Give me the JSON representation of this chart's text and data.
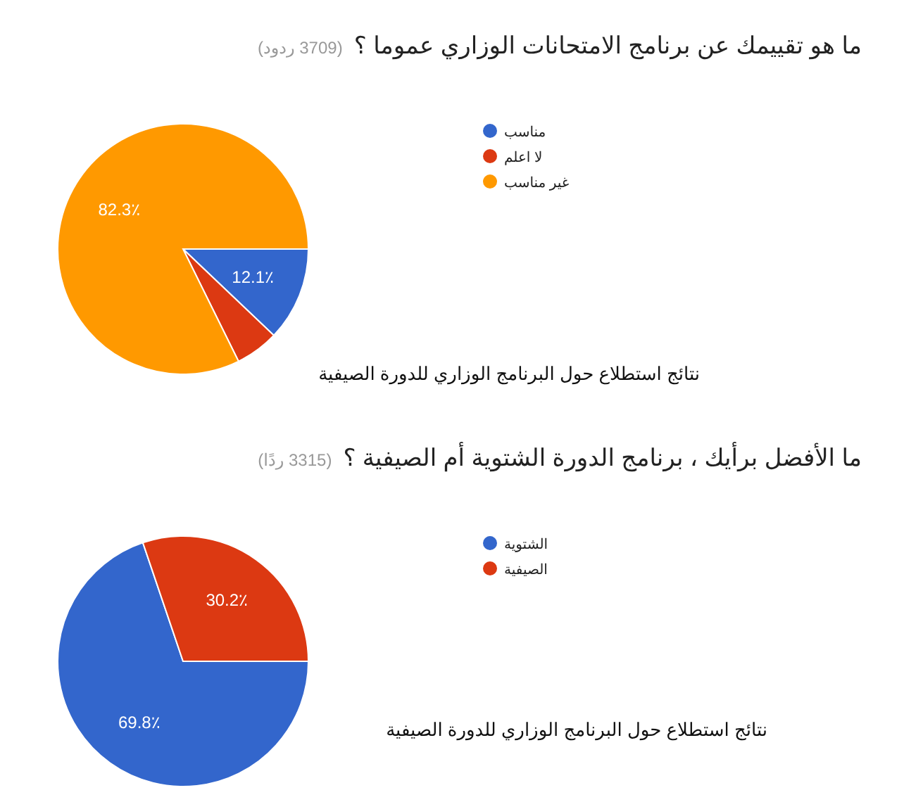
{
  "chart_data": [
    {
      "type": "pie",
      "title": "ما هو تقييمك عن برنامج الامتحانات الوزاري عموما ؟",
      "subtitle": "(3709 ردود)",
      "categories": [
        "مناسب",
        "لا اعلم",
        "غير مناسب"
      ],
      "values": [
        12.1,
        5.6,
        82.3
      ],
      "colors": [
        "#3366cc",
        "#dc3912",
        "#ff9900"
      ],
      "value_labels": [
        "12.1٪",
        null,
        "82.3٪"
      ],
      "legend": "right",
      "annotations": [
        "نتائج استطلاع حول البرنامج الوزاري للدورة الصيفية"
      ]
    },
    {
      "type": "pie",
      "title": "ما الأفضل برأيك ، برنامج الدورة الشتوية أم الصيفية ؟",
      "subtitle": "(3315 ردًا)",
      "categories": [
        "الشتوية",
        "الصيفية"
      ],
      "values": [
        69.8,
        30.2
      ],
      "colors": [
        "#3366cc",
        "#dc3912"
      ],
      "value_labels": [
        "69.8٪",
        "30.2٪"
      ],
      "legend": "right",
      "annotations": [
        "نتائج استطلاع حول البرنامج الوزاري للدورة الصيفية"
      ]
    }
  ]
}
